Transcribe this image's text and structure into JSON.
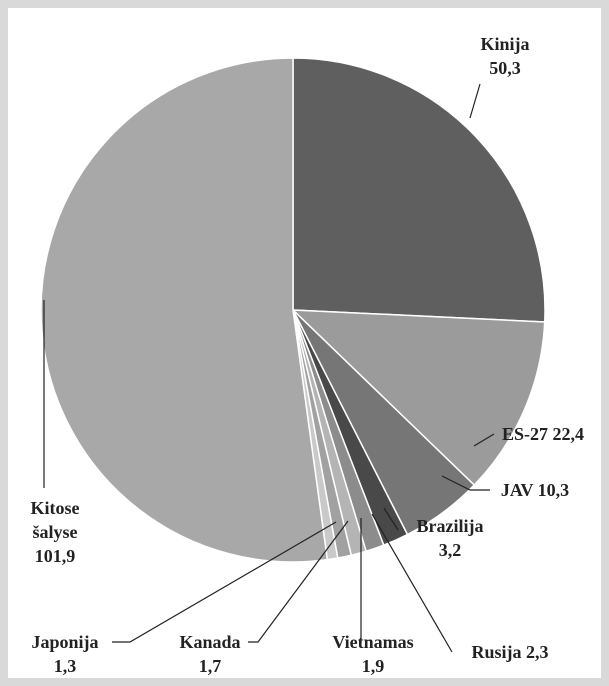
{
  "chart_data": {
    "type": "pie",
    "categories": [
      "Kinija",
      "ES-27",
      "JAV",
      "Brazilija",
      "Rusija",
      "Vietnamas",
      "Kanada",
      "Japonija",
      "Kitose šalyse"
    ],
    "values": [
      50.3,
      22.4,
      10.3,
      3.2,
      2.3,
      1.9,
      1.7,
      1.3,
      101.9
    ],
    "value_labels": [
      "50,3",
      "22,4",
      "10,3",
      "3,2",
      "2,3",
      "1,9",
      "1,7",
      "1,3",
      "101,9"
    ],
    "colors": [
      "#5f5f5f",
      "#9b9b9b",
      "#767676",
      "#494949",
      "#8c8c8c",
      "#b4b4b4",
      "#a1a1a1",
      "#c9c9c9",
      "#a8a8a8"
    ]
  }
}
